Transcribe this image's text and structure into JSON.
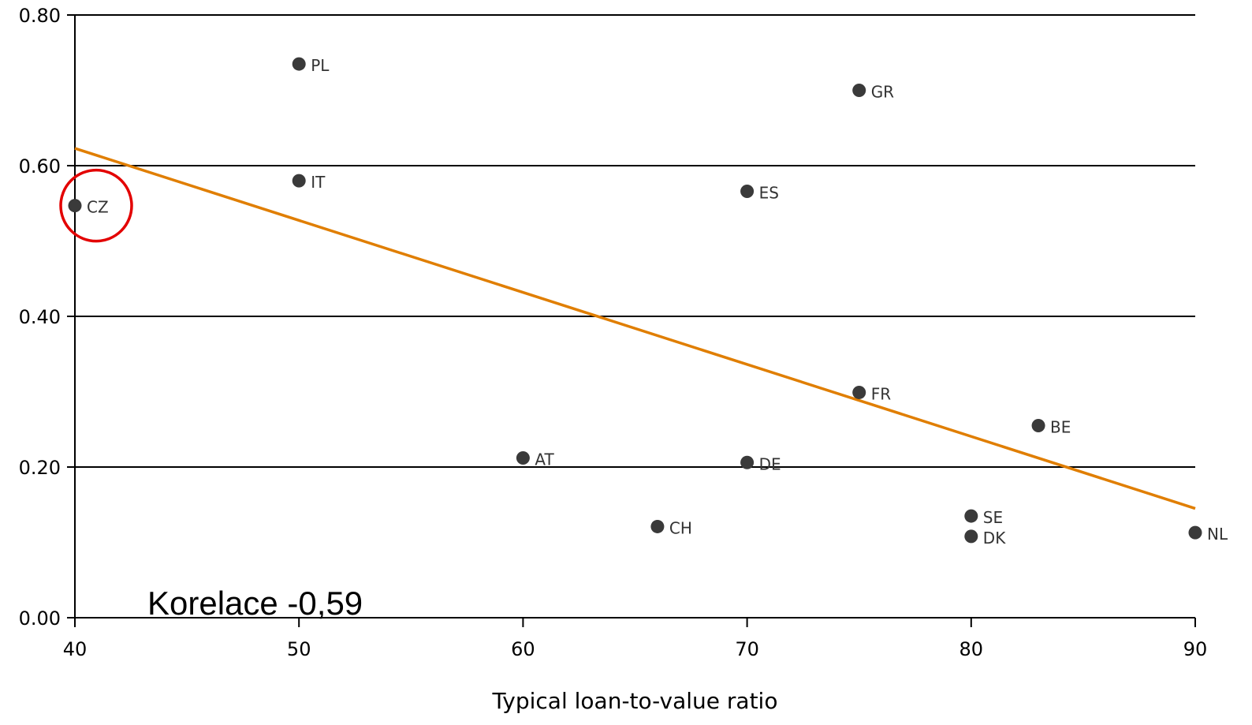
{
  "chart_data": {
    "type": "scatter",
    "title": "",
    "xlabel": "Typical loan-to-value ratio",
    "ylabel": "",
    "xlim": [
      40,
      90
    ],
    "ylim": [
      0,
      0.8
    ],
    "x_ticks": [
      "40",
      "50",
      "60",
      "70",
      "80",
      "90"
    ],
    "y_ticks": [
      "0.00",
      "0.20",
      "0.40",
      "0.60",
      "0.80"
    ],
    "grid": "horizontal",
    "points": [
      {
        "label": "PL",
        "x": 50,
        "y": 0.735
      },
      {
        "label": "GR",
        "x": 75,
        "y": 0.7
      },
      {
        "label": "IT",
        "x": 50,
        "y": 0.58
      },
      {
        "label": "ES",
        "x": 70,
        "y": 0.566
      },
      {
        "label": "CZ",
        "x": 40,
        "y": 0.547
      },
      {
        "label": "FR",
        "x": 75,
        "y": 0.299
      },
      {
        "label": "BE",
        "x": 83,
        "y": 0.255
      },
      {
        "label": "AT",
        "x": 60,
        "y": 0.212
      },
      {
        "label": "DE",
        "x": 70,
        "y": 0.206
      },
      {
        "label": "SE",
        "x": 80,
        "y": 0.135
      },
      {
        "label": "CH",
        "x": 66,
        "y": 0.121
      },
      {
        "label": "NL",
        "x": 90,
        "y": 0.113
      },
      {
        "label": "DK",
        "x": 80,
        "y": 0.108
      }
    ],
    "trendline": {
      "x": [
        40,
        90
      ],
      "y": [
        0.623,
        0.145
      ],
      "color": "#e07e00"
    },
    "highlight": {
      "label": "CZ",
      "color": "#e30000"
    },
    "annotation": "Korelace -0,59",
    "colors": {
      "points": "#3a3a3a",
      "axes": "#000000"
    }
  }
}
